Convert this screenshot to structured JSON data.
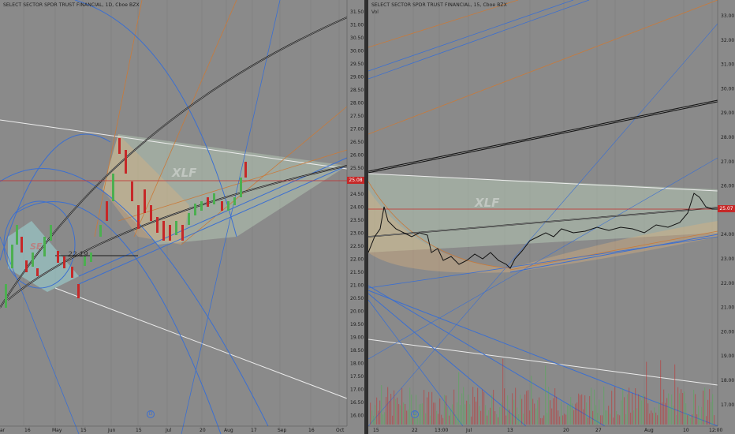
{
  "left_chart": {
    "title": "SELECT SECTOR SPDR TRUST FINANCIAL, 1D, Cboe BZX",
    "watermark": "XLF",
    "watermark_small": "SE",
    "annotation": "22.19",
    "price_tag": "25.08",
    "price_levels": [
      "31.50",
      "31.00",
      "30.50",
      "30.00",
      "29.50",
      "29.00",
      "28.50",
      "28.00",
      "27.50",
      "27.00",
      "26.50",
      "26.00",
      "25.50",
      "25.00",
      "24.50",
      "24.00",
      "23.50",
      "23.00",
      "22.50",
      "22.00",
      "21.50",
      "21.00",
      "20.50",
      "20.00",
      "19.50",
      "19.00",
      "18.50",
      "18.00",
      "17.50",
      "17.00",
      "16.50",
      "16.00"
    ],
    "time_labels": [
      "ar",
      "16",
      "May",
      "15",
      "Jun",
      "15",
      "Jul",
      "20",
      "Aug",
      "17",
      "Sep",
      "16",
      "Oct"
    ],
    "event_marker": "D"
  },
  "right_chart": {
    "title": "SELECT SECTOR SPDR TRUST FINANCIAL, 15, Cboe BZX",
    "volume_label": "Vol",
    "watermark": "XLF",
    "price_tag": "25.07",
    "price_levels": [
      "33.00",
      "32.00",
      "31.00",
      "30.00",
      "29.00",
      "28.00",
      "27.00",
      "26.00",
      "25.00",
      "24.00",
      "23.00",
      "22.00",
      "21.00",
      "20.00",
      "19.00",
      "18.00",
      "17.00"
    ],
    "time_labels": [
      "15",
      "22",
      "13:00",
      "Jul",
      "13",
      "20",
      "27",
      "Aug",
      "10",
      "12:00"
    ],
    "event_marker": "D"
  },
  "colors": {
    "background": "#8a8a8a",
    "bull_candle": "#4caf50",
    "bear_candle": "#c62828",
    "trendline_blue": "#3b6fd1",
    "trendline_orange": "#c97a3a",
    "trendline_white": "#e8e8e8",
    "trendline_black": "#1a1a1a"
  }
}
